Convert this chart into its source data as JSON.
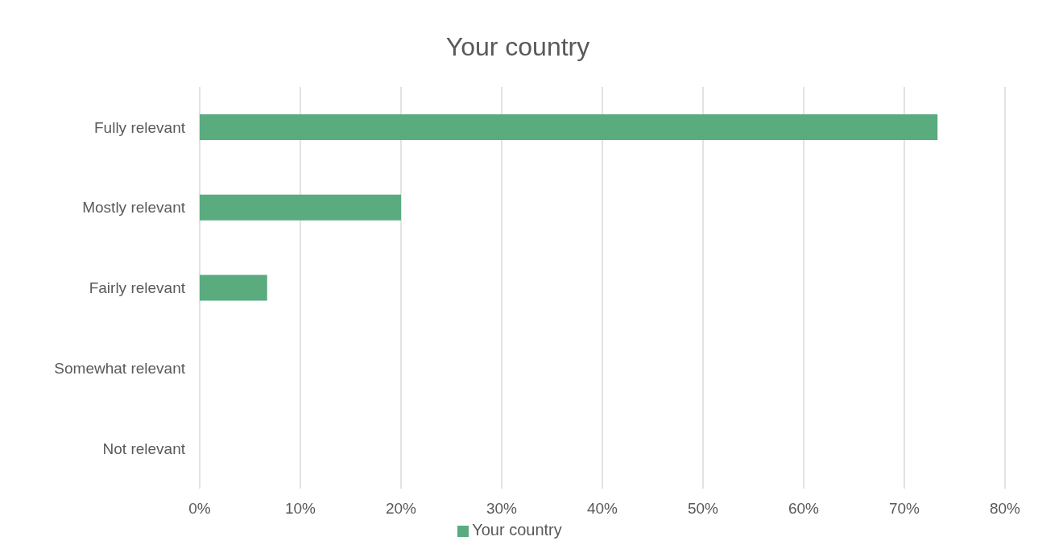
{
  "chart_data": {
    "type": "bar",
    "orientation": "horizontal",
    "title": "Your country",
    "categories": [
      "Fully relevant",
      "Mostly relevant",
      "Fairly relevant",
      "Somewhat relevant",
      "Not relevant"
    ],
    "series": [
      {
        "name": "Your country",
        "color": "#5aab7e",
        "values": [
          73.3,
          20,
          6.7,
          0,
          0
        ]
      }
    ],
    "xlim": [
      0,
      80
    ],
    "xticks": [
      {
        "value": 0,
        "label": "0%"
      },
      {
        "value": 10,
        "label": "10%"
      },
      {
        "value": 20,
        "label": "20%"
      },
      {
        "value": 30,
        "label": "30%"
      },
      {
        "value": 40,
        "label": "40%"
      },
      {
        "value": 50,
        "label": "50%"
      },
      {
        "value": 60,
        "label": "60%"
      },
      {
        "value": 70,
        "label": "70%"
      },
      {
        "value": 80,
        "label": "80%"
      }
    ],
    "grid": "x",
    "legend": "bottom"
  }
}
